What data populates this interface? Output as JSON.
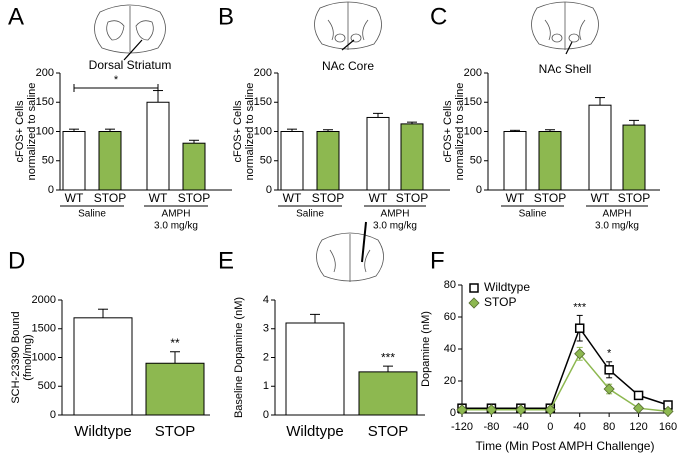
{
  "chart_data": [
    {
      "type": "bar",
      "panel": "A",
      "title": "Dorsal Striatum",
      "y_label": [
        "cFOS+ Cells",
        "normalized to saline"
      ],
      "categories": [
        "WT",
        "STOP",
        "WT",
        "STOP"
      ],
      "values": [
        100,
        100,
        150,
        80
      ],
      "errors": [
        4,
        4,
        20,
        5
      ],
      "colors": [
        "#ffffff",
        "#8db850",
        "#ffffff",
        "#8db850"
      ],
      "groups": [
        {
          "name": "Saline"
        },
        {
          "name": "AMPH",
          "sub": "3.0 mg/kg"
        }
      ],
      "bracket": "*",
      "ylim": [
        0,
        200
      ],
      "yticks": [
        0,
        50,
        100,
        150,
        200
      ]
    },
    {
      "type": "bar",
      "panel": "B",
      "title": "NAc Core",
      "y_label": [
        "cFOS+ Cells",
        "normalized to saline"
      ],
      "categories": [
        "WT",
        "STOP",
        "WT",
        "STOP"
      ],
      "values": [
        100,
        100,
        124,
        113
      ],
      "errors": [
        4,
        3,
        7,
        3
      ],
      "colors": [
        "#ffffff",
        "#8db850",
        "#ffffff",
        "#8db850"
      ],
      "groups": [
        {
          "name": "Saline"
        },
        {
          "name": "AMPH",
          "sub": "3.0 mg/kg"
        }
      ],
      "ylim": [
        0,
        200
      ],
      "yticks": [
        0,
        50,
        100,
        150,
        200
      ]
    },
    {
      "type": "bar",
      "panel": "C",
      "title": "NAc Shell",
      "y_label": [
        "cFOS+ Cells",
        "normalized to saline"
      ],
      "categories": [
        "WT",
        "STOP",
        "WT",
        "STOP"
      ],
      "values": [
        100,
        100,
        145,
        111
      ],
      "errors": [
        2,
        3,
        13,
        8
      ],
      "colors": [
        "#ffffff",
        "#8db850",
        "#ffffff",
        "#8db850"
      ],
      "groups": [
        {
          "name": "Saline"
        },
        {
          "name": "AMPH",
          "sub": "3.0 mg/kg"
        }
      ],
      "ylim": [
        0,
        200
      ],
      "yticks": [
        0,
        50,
        100,
        150,
        200
      ]
    },
    {
      "type": "bar",
      "panel": "D",
      "y_label": [
        "SCH-23390 Bound",
        "(fmol/mg)"
      ],
      "categories": [
        "Wildtype",
        "STOP"
      ],
      "values": [
        1690,
        900
      ],
      "errors": [
        150,
        200
      ],
      "colors": [
        "#ffffff",
        "#8db850"
      ],
      "annotations": [
        null,
        "**"
      ],
      "ylim": [
        0,
        2000
      ],
      "yticks": [
        0,
        500,
        1000,
        1500,
        2000
      ]
    },
    {
      "type": "bar",
      "panel": "E",
      "y_label": [
        "Baseline Dopamine (nM)"
      ],
      "categories": [
        "Wildtype",
        "STOP"
      ],
      "values": [
        3.2,
        1.5
      ],
      "errors": [
        0.3,
        0.2
      ],
      "colors": [
        "#ffffff",
        "#8db850"
      ],
      "annotations": [
        null,
        "***"
      ],
      "ylim": [
        0,
        4
      ],
      "yticks": [
        0,
        1,
        2,
        3,
        4
      ]
    },
    {
      "type": "line",
      "panel": "F",
      "y_label": [
        "Dopamine (nM)"
      ],
      "x_label": "Time (Min Post AMPH Challenge)",
      "x": [
        -120,
        -80,
        -40,
        0,
        40,
        80,
        120,
        160
      ],
      "series": [
        {
          "name": "Wildtype",
          "color": "#000000",
          "marker": "square",
          "values": [
            3,
            3,
            3,
            3,
            53,
            27,
            11,
            5
          ],
          "errors": [
            1,
            1,
            1,
            1,
            8,
            5,
            1,
            1
          ]
        },
        {
          "name": "STOP",
          "color": "#8db850",
          "marker": "diamond",
          "values": [
            2,
            2,
            2,
            2,
            37,
            15,
            3,
            1
          ],
          "errors": [
            1,
            1,
            1,
            1,
            4,
            3,
            0.5,
            0.5
          ]
        }
      ],
      "annotations": [
        null,
        null,
        null,
        null,
        "***",
        "*",
        null,
        null
      ],
      "legend": "upper left",
      "xlim": [
        -120,
        160
      ],
      "xticks": [
        -120,
        -80,
        -40,
        0,
        40,
        80,
        120,
        160
      ],
      "ylim": [
        0,
        80
      ],
      "yticks": [
        0,
        20,
        40,
        60,
        80
      ]
    }
  ]
}
